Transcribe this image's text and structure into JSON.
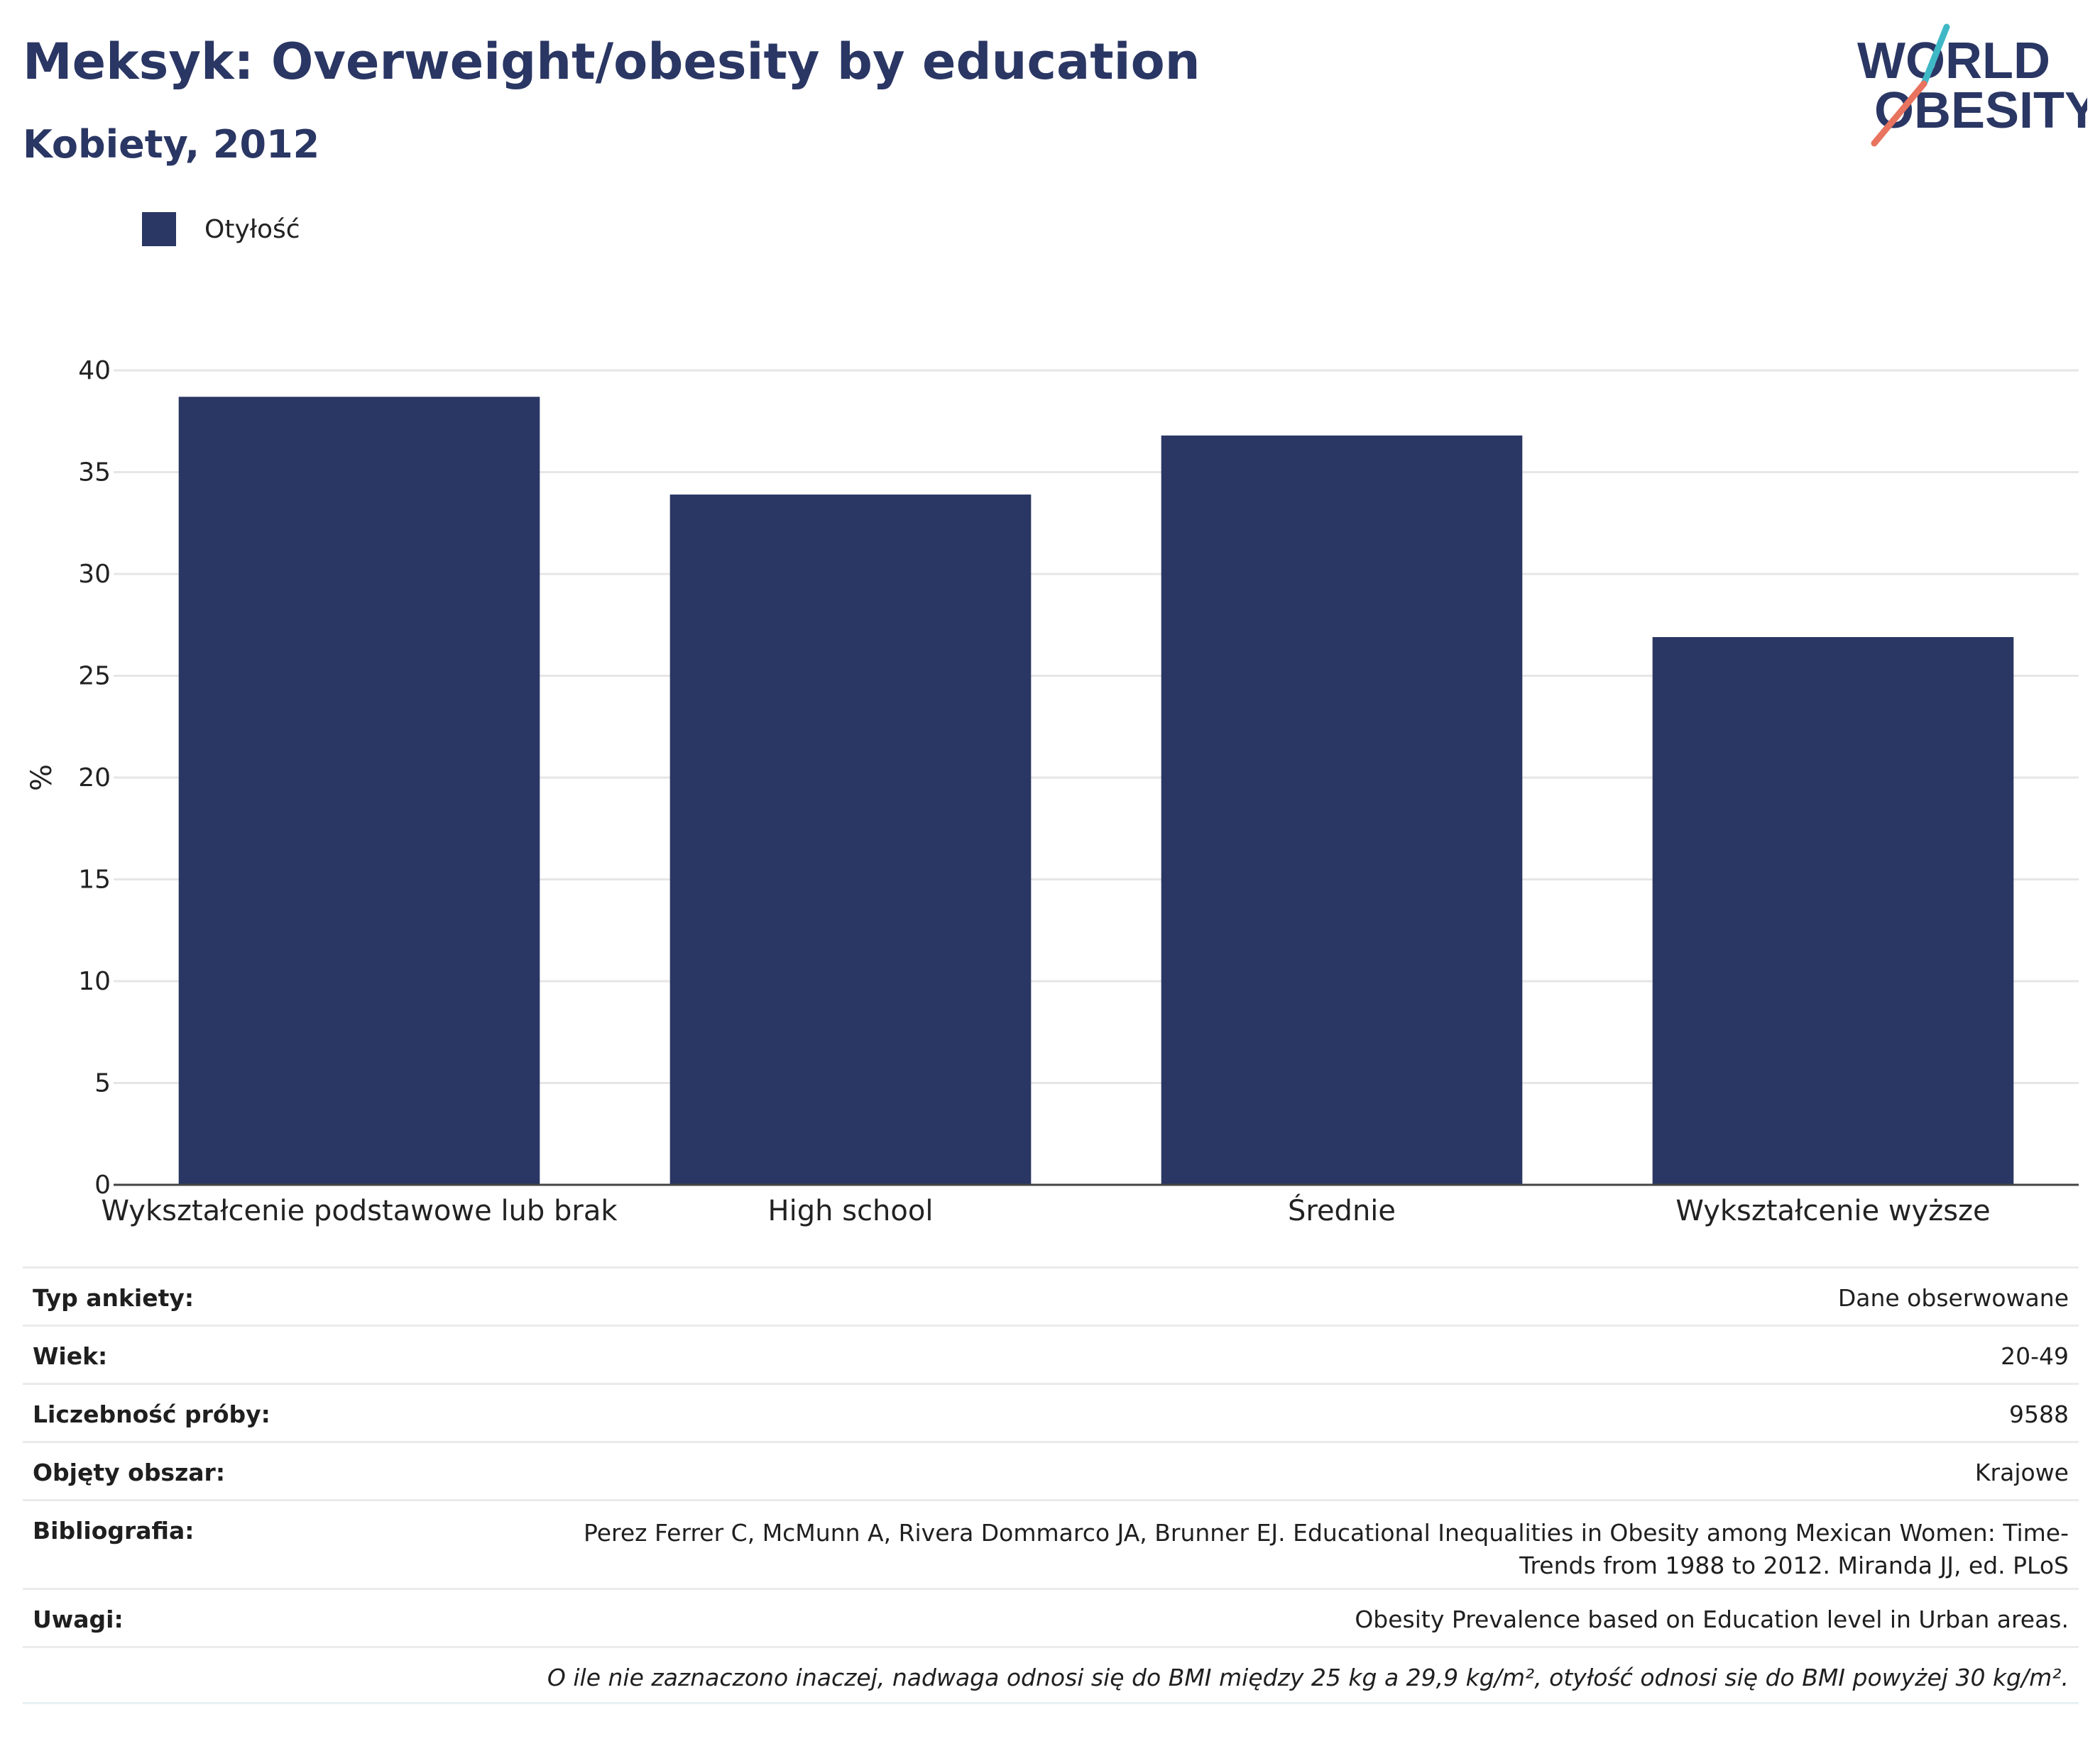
{
  "header": {
    "title": "Meksyk: Overweight/obesity by education",
    "subtitle": "Kobiety, 2012"
  },
  "logo": {
    "line1": "WORLD",
    "line2": "OBESITY"
  },
  "colors": {
    "bar": "#2a3663",
    "grid": "#e6e6e6",
    "axis": "#444444",
    "logo_teal": "#3fb8c6",
    "logo_red": "#e8735e"
  },
  "chart_data": {
    "type": "bar",
    "categories": [
      "Wykształcenie podstawowe lub brak",
      "High school",
      "Średnie",
      "Wykształcenie wyższe"
    ],
    "series": [
      {
        "name": "Otyłość",
        "values": [
          38.7,
          33.9,
          36.8,
          26.9
        ]
      }
    ],
    "title": "Meksyk: Overweight/obesity by education",
    "subtitle": "Kobiety, 2012",
    "xlabel": "",
    "ylabel": "%",
    "ylim": [
      0,
      40
    ],
    "yticks": [
      0,
      5,
      10,
      15,
      20,
      25,
      30,
      35,
      40
    ],
    "grid": true,
    "legend": "top-left"
  },
  "metadata": {
    "rows": [
      {
        "key": "Typ ankiety:",
        "value": "Dane obserwowane"
      },
      {
        "key": "Wiek:",
        "value": "20-49"
      },
      {
        "key": "Liczebność próby:",
        "value": "9588"
      },
      {
        "key": "Objęty obszar:",
        "value": "Krajowe"
      },
      {
        "key": "Bibliografia:",
        "value": "Perez Ferrer C, McMunn A, Rivera Dommarco JA, Brunner EJ. Educational Inequalities in Obesity among Mexican Women: Time-Trends from 1988 to 2012. Miranda JJ, ed. PLoS"
      },
      {
        "key": "Uwagi:",
        "value": "Obesity Prevalence based on Education level in Urban areas."
      }
    ],
    "footnote": "O ile nie zaznaczono inaczej, nadwaga odnosi się do BMI między 25 kg a 29,9 kg/m², otyłość odnosi się do BMI powyżej 30 kg/m²."
  }
}
